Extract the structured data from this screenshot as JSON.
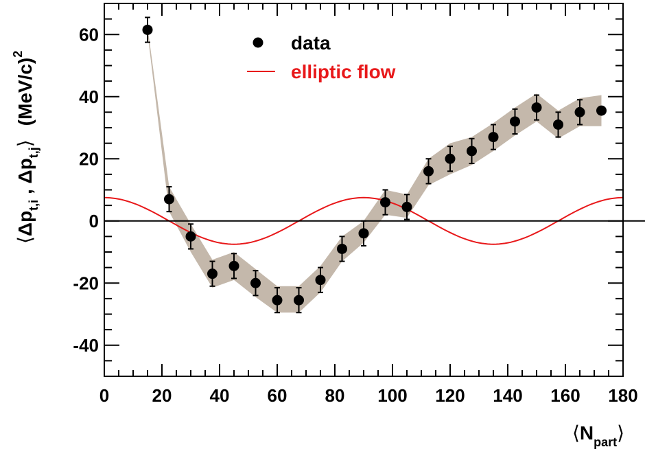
{
  "chart_data": {
    "type": "scatter",
    "x": [
      15,
      22.5,
      30,
      37.5,
      45,
      52.5,
      60,
      67.5,
      75,
      82.5,
      90,
      97.5,
      105,
      112.5,
      120,
      127.5,
      135,
      142.5,
      150,
      157.5,
      165,
      172.5
    ],
    "series": [
      {
        "name": "data",
        "values": [
          61.5,
          7,
          -5,
          -17,
          -14.5,
          -20,
          -25.5,
          -25.5,
          -19,
          -9,
          -4,
          6,
          4.5,
          16,
          20,
          22.5,
          27,
          32,
          36.5,
          31,
          35,
          35.5
        ],
        "errors": [
          4,
          4,
          4,
          4,
          4,
          4,
          4,
          4,
          4,
          4,
          4,
          4,
          4,
          4,
          4,
          4,
          4,
          4,
          4,
          4,
          4,
          0
        ],
        "color": "#000000"
      },
      {
        "name": "elliptic flow",
        "curve": "7.5*cos(2*pi*x/90)",
        "color": "#e8181a"
      }
    ],
    "band": {
      "color": "#c4b8ab",
      "lower": [
        60.5,
        3,
        -10,
        -21.5,
        -19,
        -24.5,
        -29.5,
        -29.5,
        -23,
        -13,
        -7,
        2,
        1,
        11.5,
        15,
        18,
        22.5,
        27.5,
        32,
        26.5,
        30.5,
        30.5
      ],
      "upper": [
        62.5,
        11,
        -1,
        -12.5,
        -10,
        -15.5,
        -21,
        -21,
        -14.5,
        -5,
        0,
        10,
        8.5,
        20,
        25,
        27,
        31.5,
        36.5,
        41,
        35.5,
        39.5,
        40.5
      ]
    },
    "xlim": [
      0,
      180
    ],
    "ylim": [
      -50,
      70
    ],
    "xticks": [
      "0",
      "20",
      "40",
      "60",
      "80",
      "100",
      "120",
      "140",
      "160",
      "180"
    ],
    "yticks": [
      "-40",
      "-20",
      "0",
      "20",
      "40",
      "60"
    ],
    "xlabel": {
      "pre": "⟨",
      "main": "N",
      "sub": "part",
      "post": "⟩"
    },
    "ylabel": {
      "open": "⟨",
      "delta1": "Δ",
      "p1": "p",
      "sub1": "t,i",
      "comma": " ,  ",
      "delta2": "Δ",
      "p2": "p",
      "sub2": "t,j",
      "close": "⟩",
      "unit": "(MeV/c)",
      "unit_sup": "2"
    },
    "legend": [
      {
        "label": "data",
        "marker": "circle",
        "color": "#000000"
      },
      {
        "label": "elliptic flow",
        "marker": "line",
        "color": "#e8181a"
      }
    ],
    "legend_position": "top-center",
    "zero_line": true,
    "grid": false
  }
}
